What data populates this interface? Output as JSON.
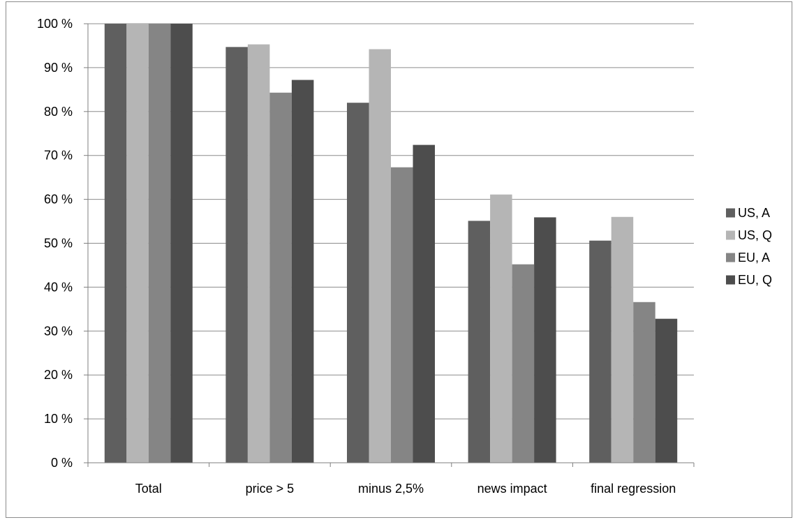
{
  "chart_data": {
    "type": "bar",
    "title": "",
    "xlabel": "",
    "ylabel": "",
    "categories": [
      "Total",
      "price > 5",
      "minus 2,5%",
      "news impact",
      "final regression"
    ],
    "series": [
      {
        "name": "US, A",
        "color": "#5f5f5f",
        "values": [
          100,
          94.7,
          82.0,
          55.1,
          50.6
        ]
      },
      {
        "name": "US, Q",
        "color": "#b5b5b5",
        "values": [
          100,
          95.3,
          94.2,
          61.1,
          56.0
        ]
      },
      {
        "name": "EU, A",
        "color": "#858585",
        "values": [
          100,
          84.3,
          67.3,
          45.2,
          36.6
        ]
      },
      {
        "name": "EU, Q",
        "color": "#4d4d4d",
        "values": [
          100,
          87.2,
          72.4,
          55.9,
          32.8
        ]
      }
    ],
    "ylim": [
      0,
      100
    ],
    "yticks": [
      0,
      10,
      20,
      30,
      40,
      50,
      60,
      70,
      80,
      90,
      100
    ],
    "ytick_labels": [
      "0 %",
      "10 %",
      "20 %",
      "30 %",
      "40 %",
      "50 %",
      "60 %",
      "70 %",
      "80 %",
      "90 %",
      "100 %"
    ],
    "grid": "horizontal",
    "legend_position": "right",
    "gridline_color": "#8c8c8c",
    "axis_color": "#7f7f7f"
  }
}
